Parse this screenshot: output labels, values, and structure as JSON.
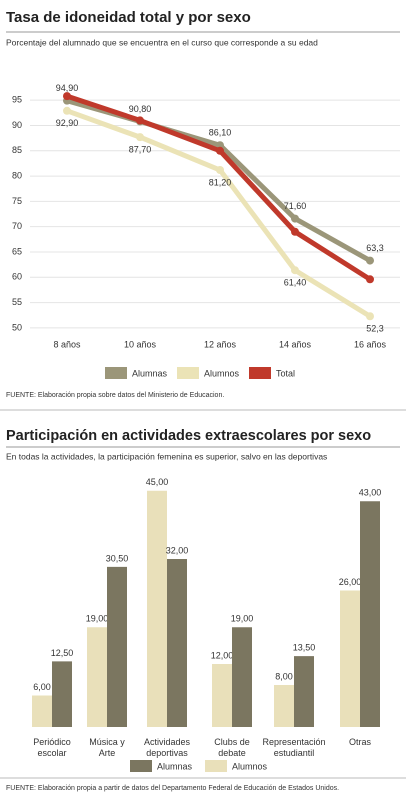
{
  "chart_data": [
    {
      "type": "line",
      "title": "Tasa de idoneidad total y por sexo",
      "subtitle": "Porcentaje del alumnado que se encuentra en el curso que corresponde a su edad",
      "source": "FUENTE: Elaboración propia sobre datos del Ministerio de Educacion.",
      "categories": [
        "8 años",
        "10 años",
        "12 años",
        "14 años",
        "16 años"
      ],
      "series": [
        {
          "name": "Alumnas",
          "color": "#9b9679",
          "values": [
            94.9,
            90.8,
            86.1,
            71.6,
            63.3
          ],
          "value_labels": [
            "94,90",
            "90,80",
            "86,10",
            "71,60",
            "63,3"
          ]
        },
        {
          "name": "Alumnos",
          "color": "#ebe3b6",
          "values": [
            92.9,
            87.7,
            81.2,
            61.4,
            52.3
          ],
          "value_labels": [
            "92,90",
            "87,70",
            "81,20",
            "61,40",
            "52,3"
          ]
        },
        {
          "name": "Total",
          "color": "#c0392b",
          "values": [
            95.8,
            91,
            85,
            69,
            59.6
          ]
        }
      ],
      "ylim": [
        48,
        98
      ],
      "yticks": [
        50,
        55,
        60,
        65,
        70,
        75,
        80,
        85,
        90,
        95
      ],
      "grid": true
    },
    {
      "type": "bar",
      "title": "Participación en actividades extraescolares por sexo",
      "subtitle": "En todas la actividades, la participación femenina es superior, salvo en las deportivas",
      "source": "FUENTE: Elaboración propia a partir de datos del Departamento Federal de Educación de Estados Unidos.",
      "categories": [
        "Periódico\nescolar",
        "Música y\nArte",
        "Actividades\ndeportivas",
        "Clubs de\ndebate",
        "Representación\nestudiantil",
        "Otras"
      ],
      "series": [
        {
          "name": "Alumnas",
          "color": "#7b7660",
          "values": [
            12.5,
            30.5,
            32,
            19,
            13.5,
            43
          ],
          "value_labels": [
            "12,50",
            "30,50",
            "32,00",
            "19,00",
            "13,50",
            "43,00"
          ]
        },
        {
          "name": "Alumnos",
          "color": "#e9e0ba",
          "values": [
            6,
            19,
            45,
            12,
            8,
            26
          ],
          "value_labels": [
            "6,00",
            "19,00",
            "45,00",
            "12,00",
            "8,00",
            "26,00"
          ]
        }
      ],
      "ylim": [
        0,
        48
      ]
    }
  ]
}
